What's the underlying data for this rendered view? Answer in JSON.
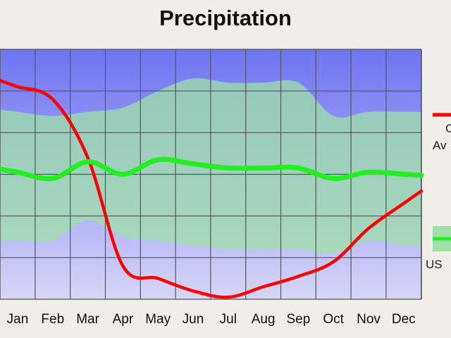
{
  "chart_data": {
    "type": "line",
    "title": "Precipitation",
    "categories": [
      "Jan",
      "Feb",
      "Mar",
      "Apr",
      "May",
      "Jun",
      "Jul",
      "Aug",
      "Sep",
      "Oct",
      "Nov",
      "Dec"
    ],
    "ylim": [
      0,
      6
    ],
    "grid": true,
    "legend_position": "right",
    "series": [
      {
        "name": "",
        "color": "#ff0000",
        "values": [
          5.1,
          4.8,
          3.4,
          0.8,
          0.5,
          0.2,
          0.05,
          0.3,
          0.55,
          0.9,
          1.7,
          2.3
        ]
      },
      {
        "name": "",
        "color": "#22ee22",
        "values": [
          3.05,
          2.9,
          3.3,
          3.0,
          3.35,
          3.25,
          3.15,
          3.15,
          3.15,
          2.9,
          3.05,
          3.0
        ]
      }
    ],
    "band": {
      "color": "#9fe0a8",
      "upper": [
        4.5,
        4.4,
        4.5,
        4.6,
        5.0,
        5.3,
        5.2,
        5.2,
        5.2,
        4.4,
        4.5,
        4.5
      ],
      "lower": [
        1.4,
        1.4,
        1.9,
        1.5,
        1.4,
        1.3,
        1.2,
        1.2,
        1.2,
        1.1,
        1.4,
        1.3
      ]
    },
    "legend": [
      {
        "label": "C",
        "color": "#ff0000"
      },
      {
        "label": "Av",
        "color": "#ff0000"
      },
      {
        "label": "US",
        "color": "#22ee22"
      }
    ]
  }
}
